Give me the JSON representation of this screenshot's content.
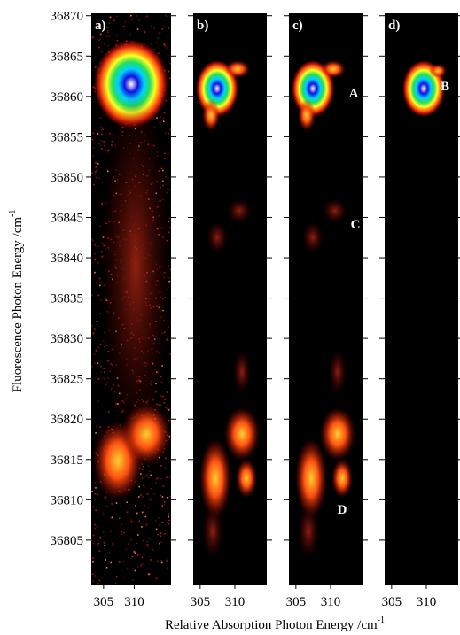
{
  "chart_data": [
    {
      "type": "heatmap",
      "title": "a)",
      "ylabel": "Fluorescence Photon Energy /cm",
      "ylabel_exponent": "-1",
      "xlim": [
        303,
        316
      ],
      "xticks": [
        305,
        310
      ],
      "ylim": [
        36799.5,
        36870.3
      ],
      "yticks": [
        36805,
        36810,
        36815,
        36820,
        36825,
        36830,
        36835,
        36840,
        36845,
        36850,
        36855,
        36860,
        36865,
        36870
      ],
      "annotations": []
    },
    {
      "type": "heatmap",
      "title": "b)",
      "xlim": [
        304,
        314.6
      ],
      "xticks": [
        305,
        310
      ],
      "ylim": [
        36799.5,
        36870.3
      ],
      "annotations": []
    },
    {
      "type": "heatmap",
      "title": "c)",
      "xlim": [
        304,
        314.6
      ],
      "xticks": [
        305,
        310
      ],
      "ylim": [
        36799.5,
        36870.3
      ],
      "annotations": [
        "A",
        "C",
        "D"
      ]
    },
    {
      "type": "heatmap",
      "title": "d)",
      "xlim": [
        304,
        314.6
      ],
      "xticks": [
        305,
        310
      ],
      "ylim": [
        36799.5,
        36870.3
      ],
      "annotations": [
        "B"
      ]
    }
  ],
  "xlabel": "Relative Absorption Photon Energy /cm",
  "xlabel_exponent": "-1"
}
